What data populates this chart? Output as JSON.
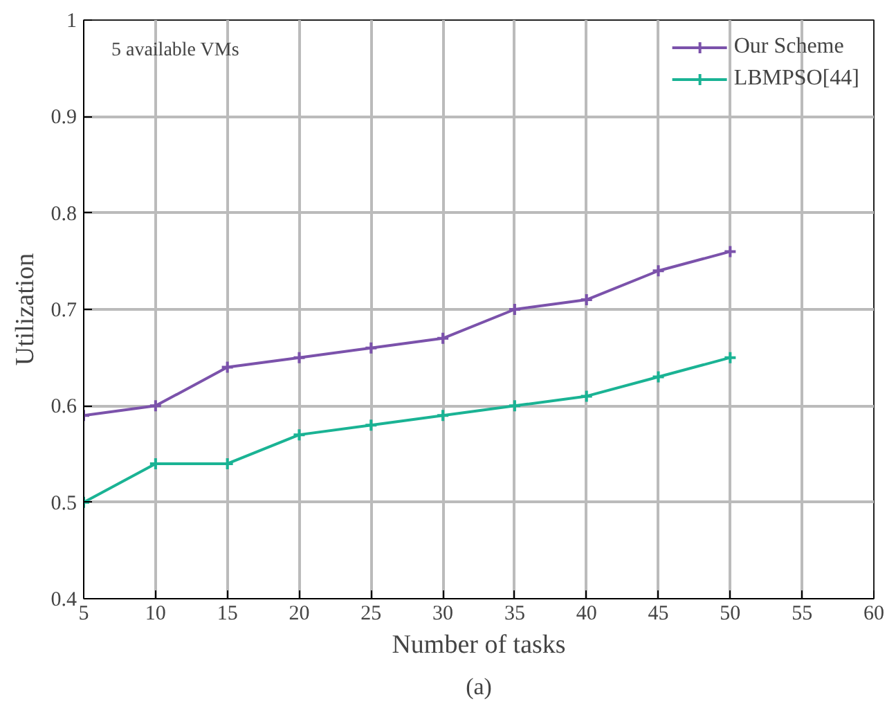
{
  "chart_data": {
    "type": "line",
    "xlabel": "Number of tasks",
    "ylabel": "Utilization",
    "x": [
      5,
      10,
      15,
      20,
      25,
      30,
      35,
      40,
      45,
      50
    ],
    "series": [
      {
        "name": "Our Scheme",
        "color": "#7b52ab",
        "marker": "cross",
        "values": [
          0.59,
          0.6,
          0.64,
          0.65,
          0.66,
          0.67,
          0.7,
          0.71,
          0.74,
          0.76
        ]
      },
      {
        "name": "LBMPSO[44]",
        "color": "#1ab394",
        "marker": "cross",
        "values": [
          0.5,
          0.54,
          0.54,
          0.57,
          0.58,
          0.59,
          0.6,
          0.61,
          0.63,
          0.65
        ]
      }
    ],
    "xlim": [
      5,
      60
    ],
    "xticks": [
      5,
      10,
      15,
      20,
      25,
      30,
      35,
      40,
      45,
      50,
      55,
      60
    ],
    "ylim": [
      0.4,
      1
    ],
    "yticks": [
      0.4,
      0.5,
      0.6,
      0.7,
      0.8,
      0.9,
      {
        "value": 1,
        "label": "1"
      }
    ],
    "grid": true,
    "legend": "top right",
    "annotations": [
      "5 available VMs",
      "(a)"
    ]
  }
}
